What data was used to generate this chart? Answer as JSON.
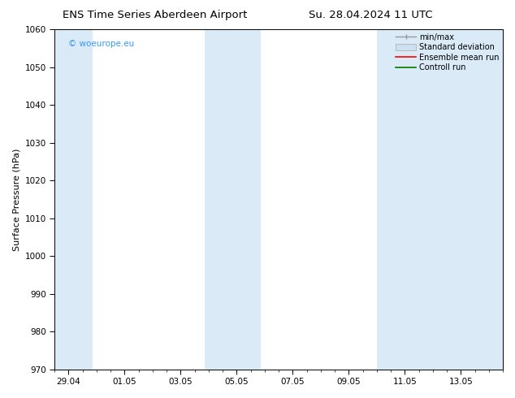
{
  "title_left": "ENS Time Series Aberdeen Airport",
  "title_right": "Su. 28.04.2024 11 UTC",
  "ylabel": "Surface Pressure (hPa)",
  "ylim": [
    970,
    1060
  ],
  "yticks": [
    970,
    980,
    990,
    1000,
    1010,
    1020,
    1030,
    1040,
    1050,
    1060
  ],
  "xtick_labels": [
    "29.04",
    "01.05",
    "03.05",
    "05.05",
    "07.05",
    "09.05",
    "11.05",
    "13.05"
  ],
  "watermark": "© woeurope.eu",
  "watermark_color": "#3399ff",
  "bg_color": "#ffffff",
  "shaded_color": "#daeaf7",
  "legend_items": [
    {
      "label": "min/max",
      "color": "#aaaaaa",
      "style": "line_with_cap"
    },
    {
      "label": "Standard deviation",
      "color": "#cce0f0",
      "style": "box"
    },
    {
      "label": "Ensemble mean run",
      "color": "#ff0000",
      "style": "line"
    },
    {
      "label": "Controll run",
      "color": "#007700",
      "style": "line"
    }
  ],
  "title_fontsize": 9.5,
  "tick_fontsize": 7.5,
  "ylabel_fontsize": 8,
  "watermark_fontsize": 7.5,
  "legend_fontsize": 7
}
